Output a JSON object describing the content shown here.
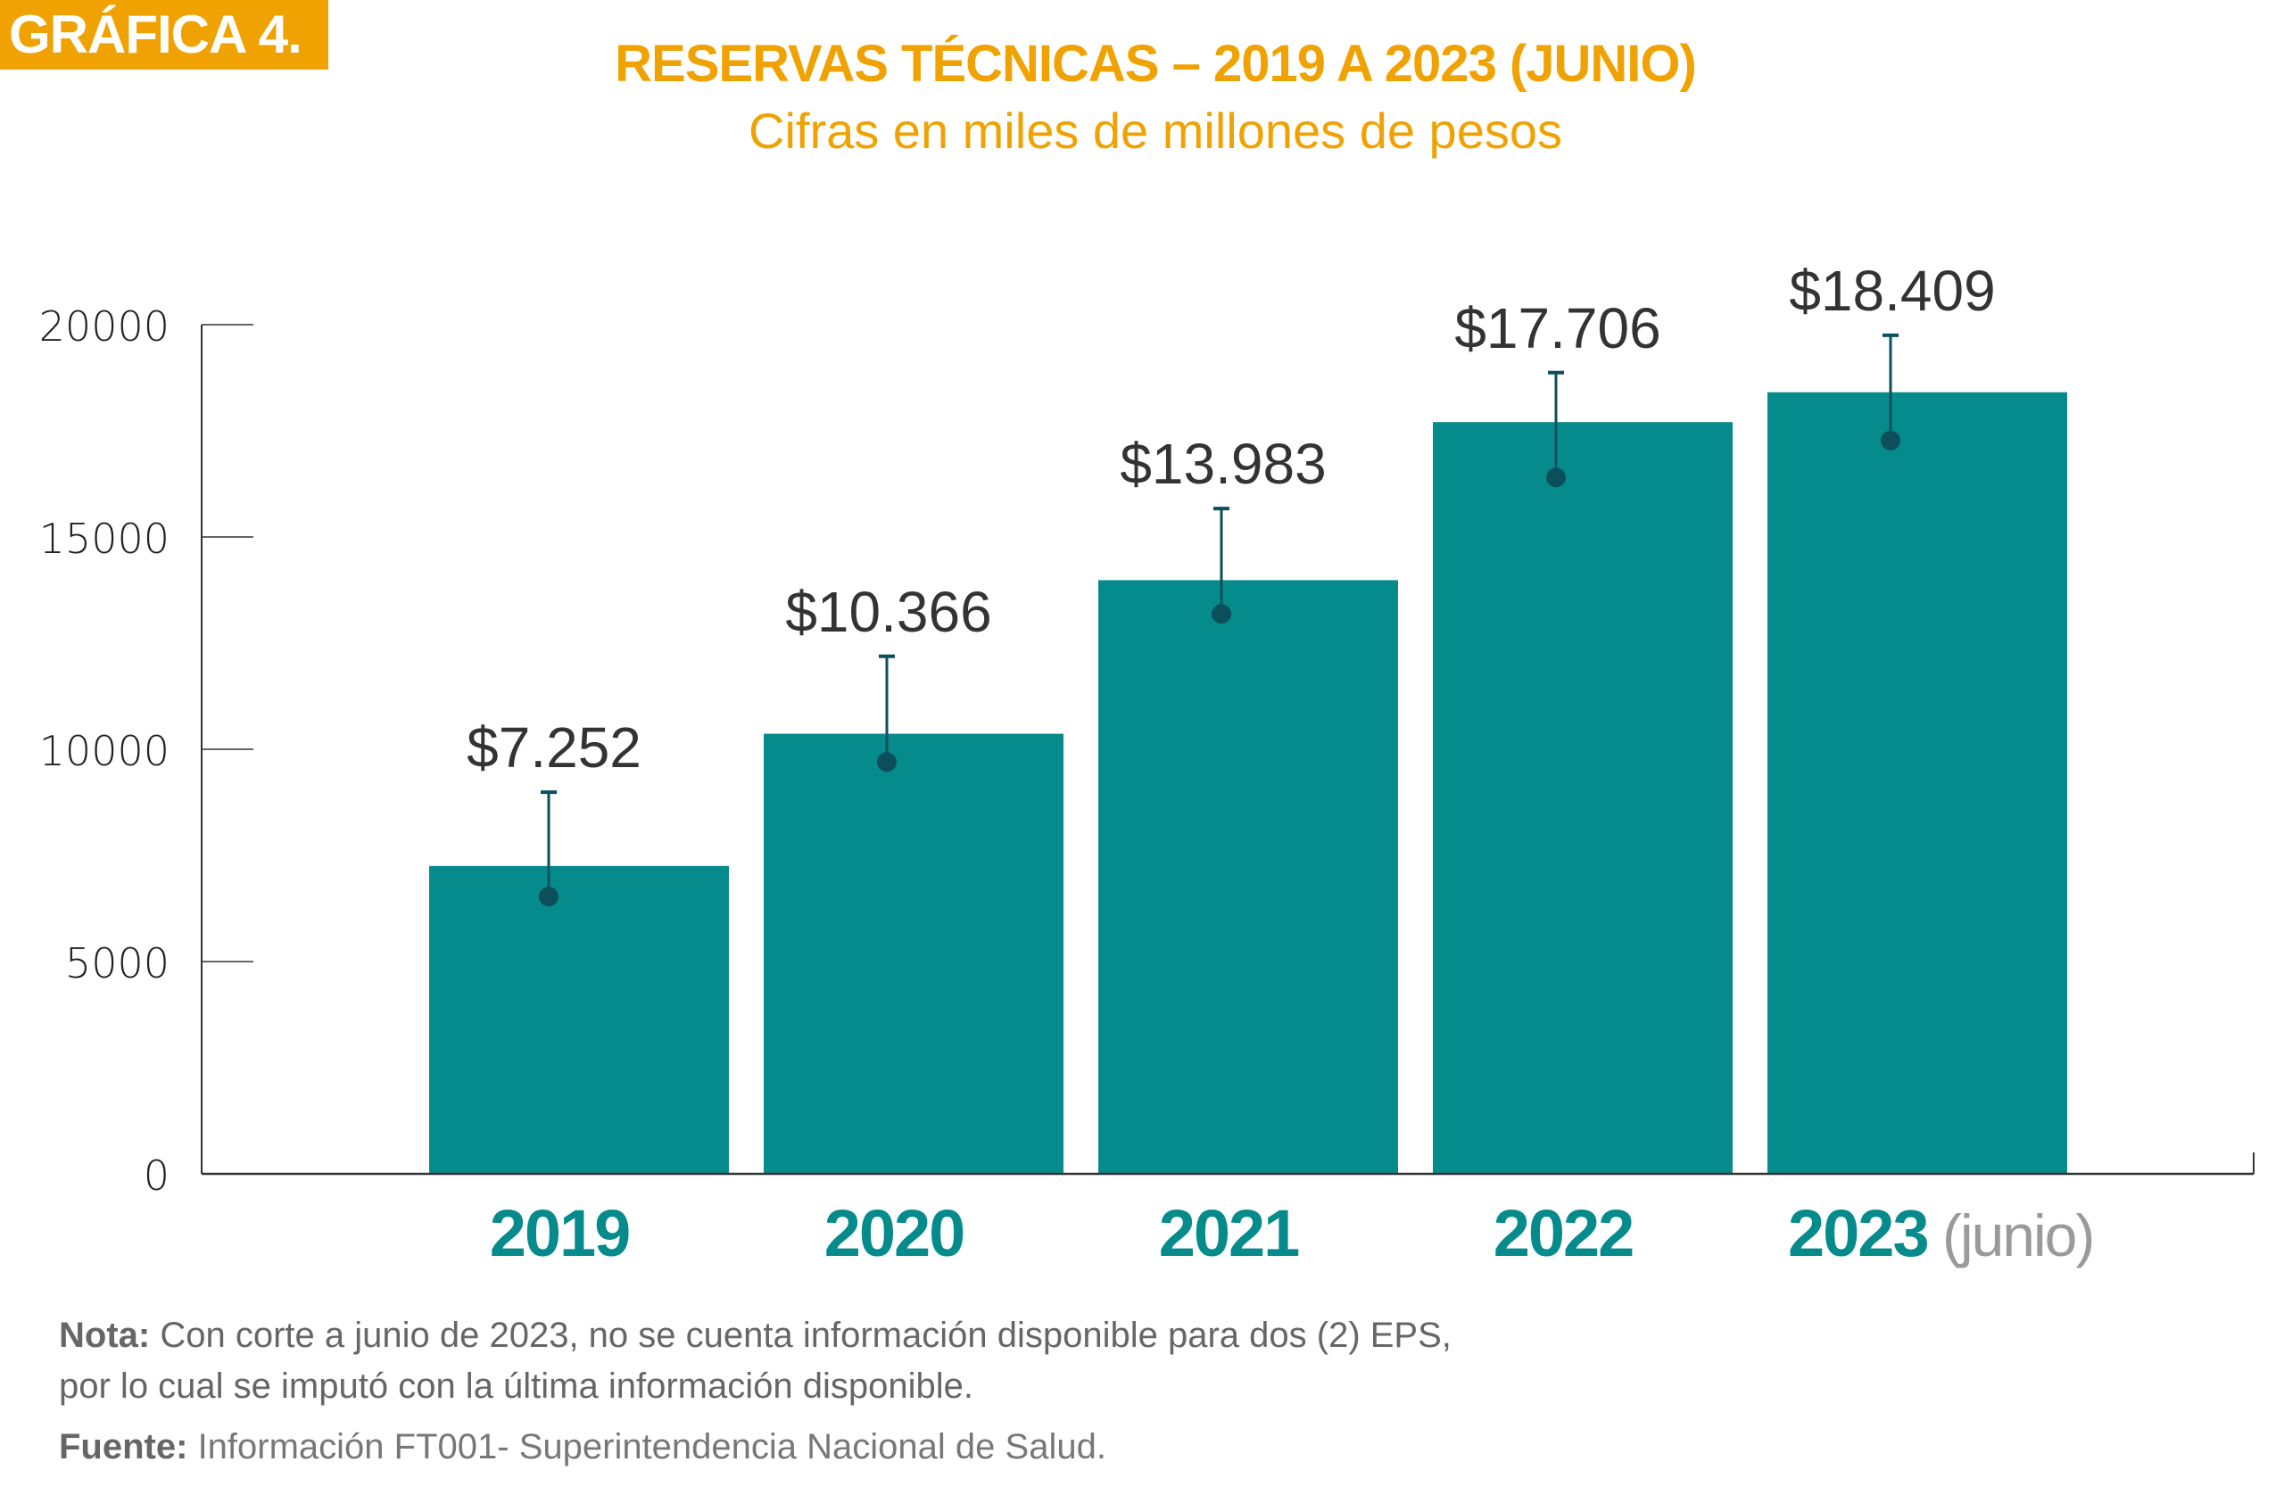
{
  "header": {
    "badge": "GRÁFICA 4.",
    "title": "RESERVAS TÉCNICAS – 2019 A 2023 (JUNIO)",
    "subtitle": "Cifras en miles de millones de pesos"
  },
  "colors": {
    "accent": "#F0A202",
    "bar": "#068B8C",
    "error_bar": "#0C4F5C",
    "label_text": "#333333",
    "category_text": "#068B8C",
    "suffix_text": "#9A9A9A",
    "axis": "#333333",
    "note_text": "#666666"
  },
  "chart_data": {
    "type": "bar",
    "title": "RESERVAS TÉCNICAS – 2019 A 2023 (JUNIO)",
    "subtitle": "Cifras en miles de millones de pesos",
    "xlabel": "",
    "ylabel": "",
    "ylim": [
      0,
      20000
    ],
    "yticks": [
      0,
      5000,
      10000,
      15000,
      20000
    ],
    "ytick_labels": [
      "0",
      "5000",
      "10000",
      "15000",
      "20000"
    ],
    "grid": false,
    "legend": "none",
    "categories": [
      "2019",
      "2020",
      "2021",
      "2022",
      "2023"
    ],
    "category_suffix": [
      "",
      "",
      "",
      "",
      "(junio)"
    ],
    "values": [
      7252,
      10366,
      13983,
      17706,
      18409
    ],
    "data_labels": [
      "$7.252",
      "$10.366",
      "$13.983",
      "$17.706",
      "$18.409"
    ],
    "error_bars": {
      "point": [
        6530,
        9700,
        13190,
        16400,
        17270
      ],
      "upper": [
        8990,
        12190,
        15670,
        18870,
        19750
      ]
    }
  },
  "footer": {
    "note_label": "Nota:",
    "note_line1": "Con corte a junio de 2023, no se cuenta información disponible para dos (2) EPS,",
    "note_line2": "por lo cual se imputó con la última información disponible.",
    "source_label": "Fuente:",
    "source_text": "Información FT001- Superintendencia Nacional de Salud."
  }
}
